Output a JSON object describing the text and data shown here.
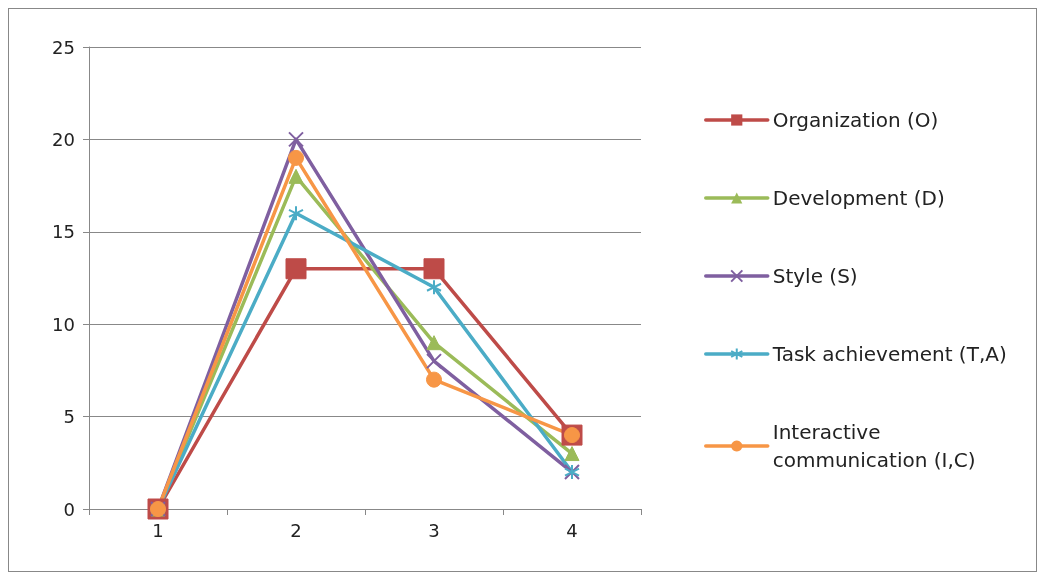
{
  "chart_data": {
    "type": "line",
    "categories": [
      "1",
      "2",
      "3",
      "4"
    ],
    "ylim": [
      0,
      25
    ],
    "yticks": [
      0,
      5,
      10,
      15,
      20,
      25
    ],
    "grid": "y",
    "legend": "right",
    "series": [
      {
        "name": "Organization (O)",
        "color": "#be4b48",
        "marker": "square",
        "values": [
          0,
          13,
          13,
          4
        ]
      },
      {
        "name": "Development (D)",
        "color": "#9bbb59",
        "marker": "triangle",
        "values": [
          0,
          18,
          9,
          3
        ]
      },
      {
        "name": "Style (S)",
        "color": "#7f5fa0",
        "marker": "cross",
        "values": [
          0,
          20,
          8,
          2
        ]
      },
      {
        "name": "Task achievement (T,A)",
        "color": "#4bacc6",
        "marker": "cross",
        "values": [
          0,
          16,
          12,
          2
        ]
      },
      {
        "name": "Interactive communication (I,C)",
        "color": "#f79646",
        "marker": "circle",
        "values": [
          0,
          19,
          7,
          4
        ]
      }
    ]
  }
}
